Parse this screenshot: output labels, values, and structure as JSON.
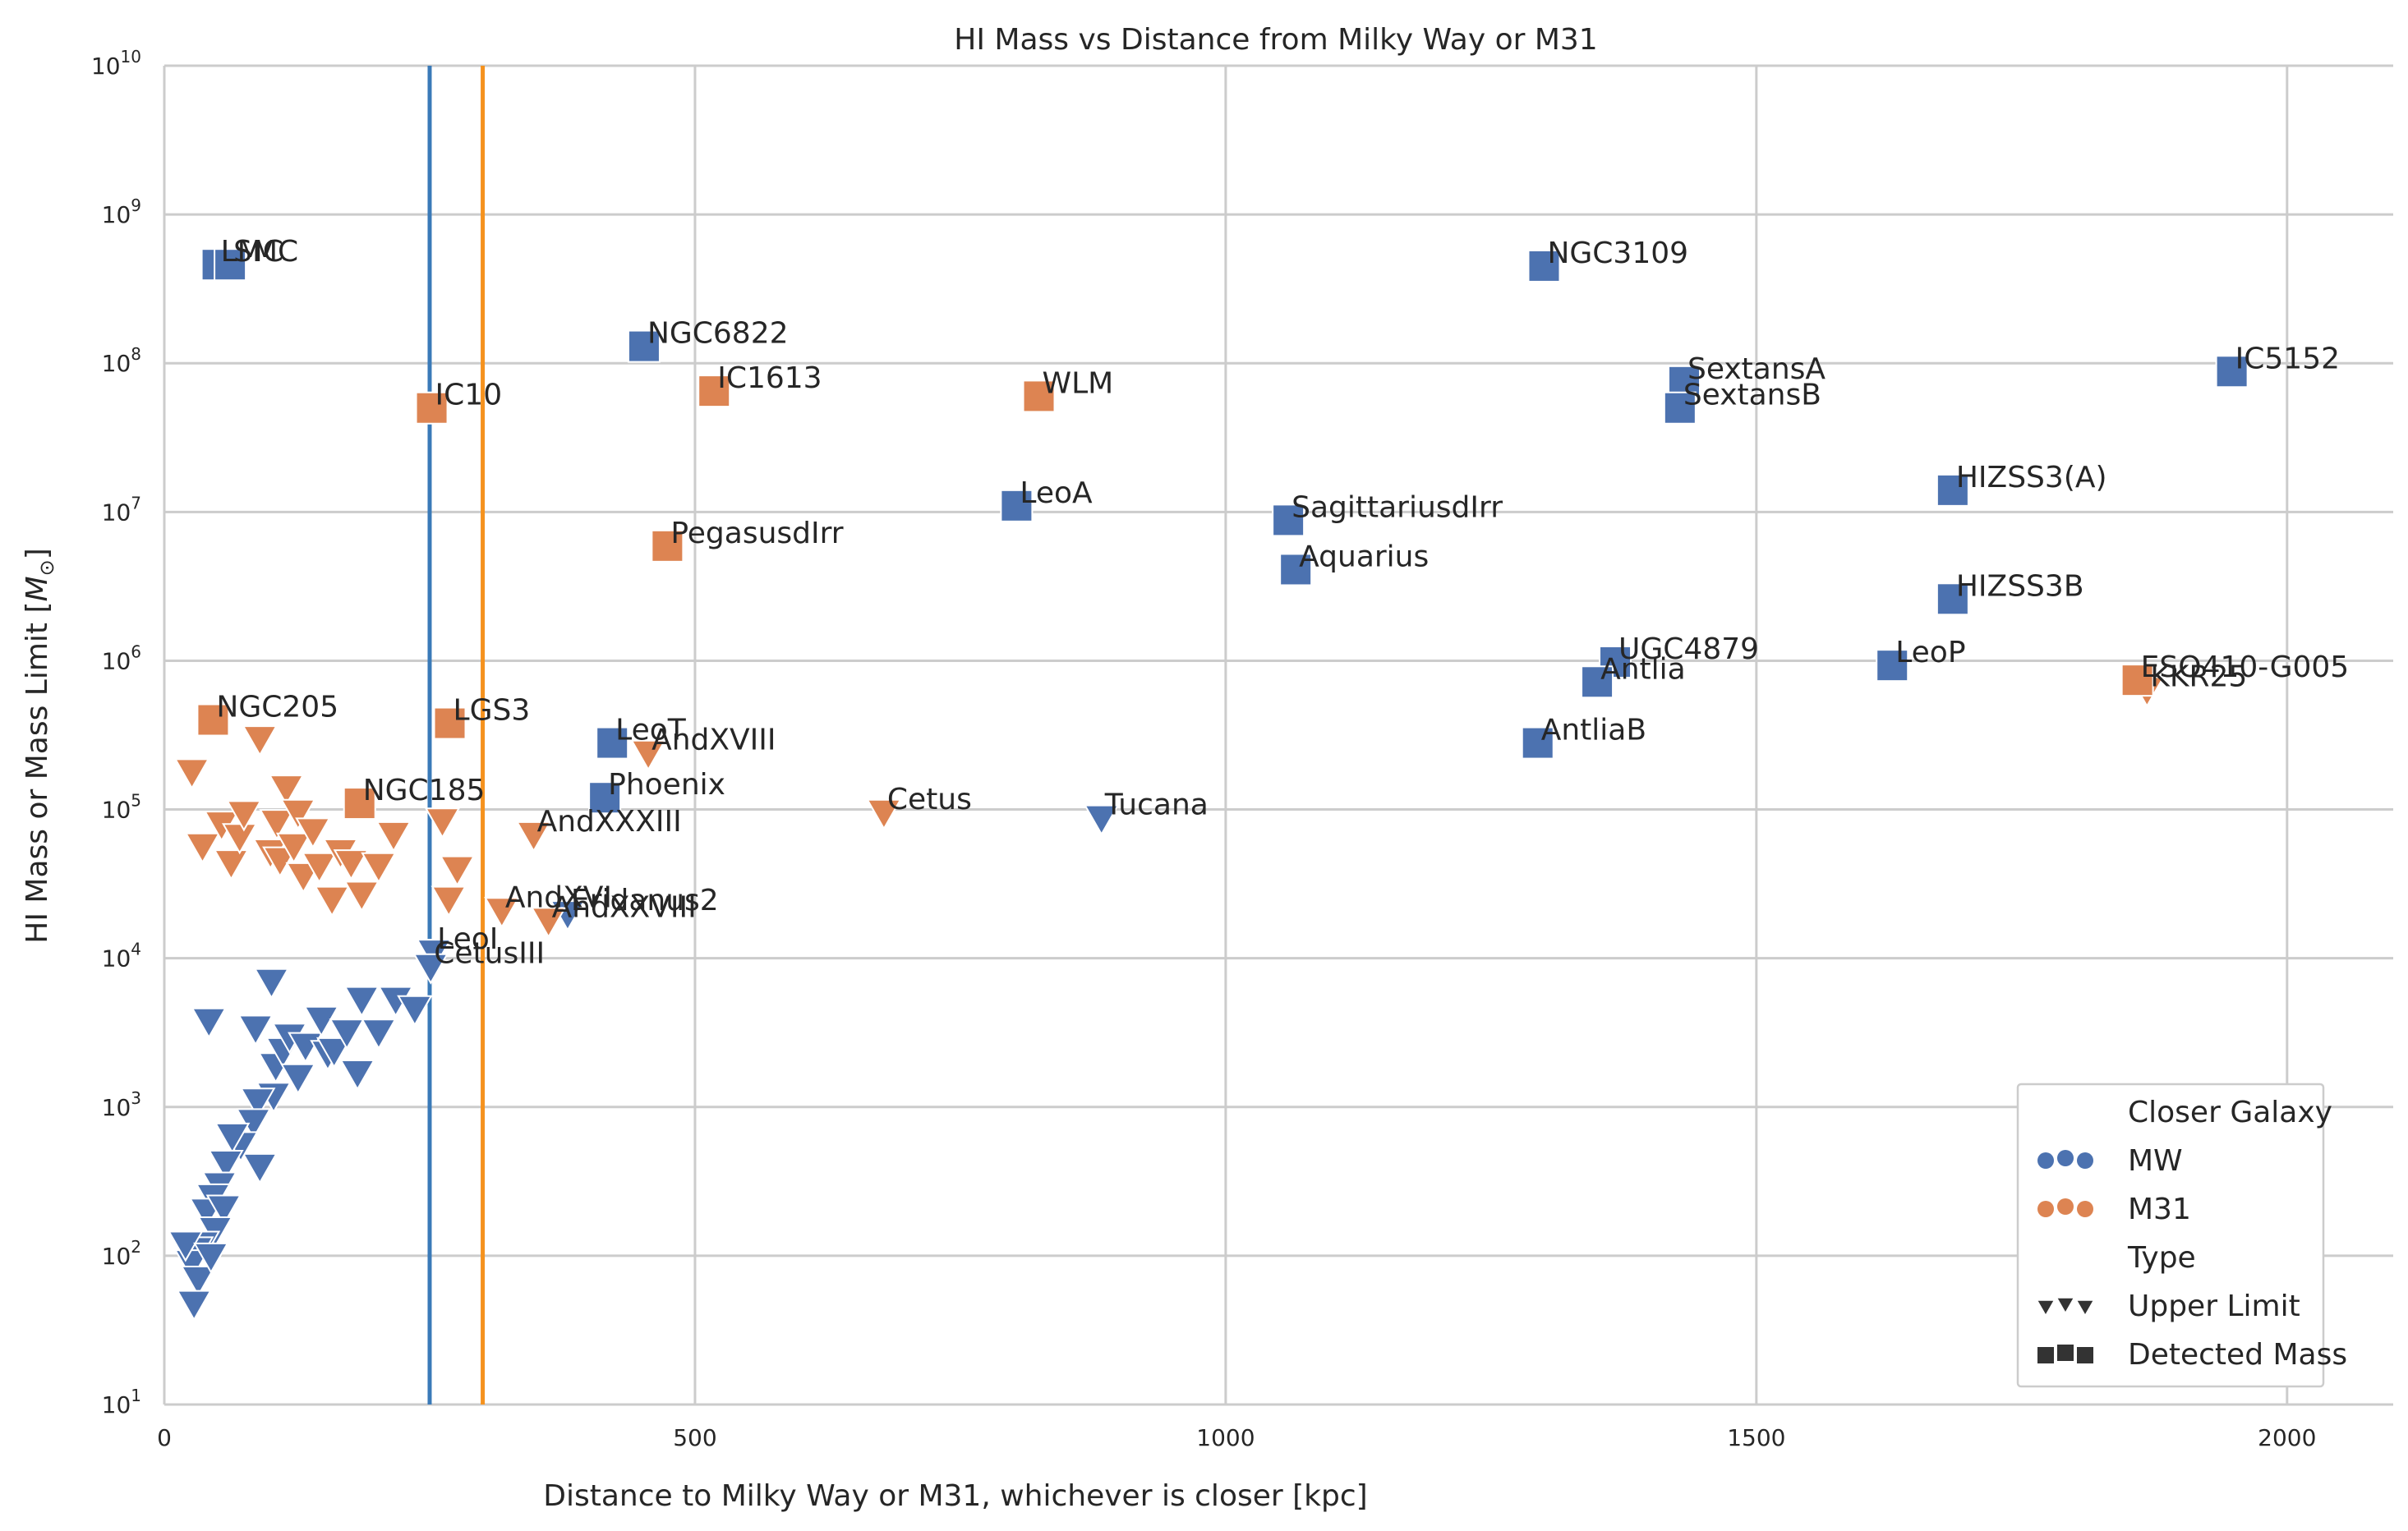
{
  "chart_data": {
    "type": "scatter",
    "title": "HI Mass vs Distance from Milky Way or M31",
    "xlabel": "Distance to Milky Way or M31, whichever is closer [kpc]",
    "ylabel": "HI Mass or Mass Limit [M⊙]",
    "xlim": [
      0,
      2100
    ],
    "ylim": [
      10,
      10000000000
    ],
    "yscale": "log",
    "grid": true,
    "x_ticks": [
      0,
      500,
      1000,
      1500,
      2000
    ],
    "x_tick_labels": [
      "0",
      "500",
      "1000",
      "1500",
      "2000"
    ],
    "y_ticks": [
      10,
      100,
      1000,
      10000,
      100000,
      1000000,
      10000000,
      100000000,
      1000000000,
      10000000000
    ],
    "y_tick_labels": [
      {
        "base": "10",
        "exp": "1"
      },
      {
        "base": "10",
        "exp": "2"
      },
      {
        "base": "10",
        "exp": "3"
      },
      {
        "base": "10",
        "exp": "4"
      },
      {
        "base": "10",
        "exp": "5"
      },
      {
        "base": "10",
        "exp": "6"
      },
      {
        "base": "10",
        "exp": "7"
      },
      {
        "base": "10",
        "exp": "8"
      },
      {
        "base": "10",
        "exp": "9"
      },
      {
        "base": "10",
        "exp": "10"
      }
    ],
    "colors": {
      "MW": "#4c72b0",
      "M31": "#dd8452"
    },
    "vlines": [
      {
        "x": 250,
        "color": "#3a7ab8"
      },
      {
        "x": 300,
        "color": "#f5921e"
      }
    ],
    "legend": {
      "placement": "lower-right",
      "title_hue": "Closer Galaxy",
      "hue_items": [
        {
          "label": "MW",
          "key": "MW"
        },
        {
          "label": "M31",
          "key": "M31"
        }
      ],
      "title_style": "Type",
      "style_items": [
        {
          "label": "Upper Limit",
          "marker": "triangle"
        },
        {
          "label": "Detected Mass",
          "marker": "square"
        }
      ]
    },
    "detected": [
      {
        "name": "LMC",
        "x": 50,
        "y": 460000000,
        "group": "MW"
      },
      {
        "name": "SMC",
        "x": 62,
        "y": 460000000,
        "group": "MW"
      },
      {
        "name": "NGC6822",
        "x": 452,
        "y": 130000000,
        "group": "MW"
      },
      {
        "name": "IC10",
        "x": 252,
        "y": 50000000,
        "group": "M31"
      },
      {
        "name": "IC1613",
        "x": 518,
        "y": 65000000,
        "group": "M31"
      },
      {
        "name": "WLM",
        "x": 824,
        "y": 60000000,
        "group": "M31"
      },
      {
        "name": "NGC3109",
        "x": 1300,
        "y": 450000000,
        "group": "MW"
      },
      {
        "name": "SextansA",
        "x": 1432,
        "y": 75000000,
        "group": "MW"
      },
      {
        "name": "SextansB",
        "x": 1428,
        "y": 50000000,
        "group": "MW"
      },
      {
        "name": "IC5152",
        "x": 1948,
        "y": 88000000,
        "group": "MW"
      },
      {
        "name": "LeoA",
        "x": 803,
        "y": 11000000,
        "group": "MW"
      },
      {
        "name": "SagittariusdIrr",
        "x": 1059,
        "y": 8800000,
        "group": "MW"
      },
      {
        "name": "Aquarius",
        "x": 1066,
        "y": 4100000,
        "group": "MW"
      },
      {
        "name": "PegasusdIrr",
        "x": 474,
        "y": 5900000,
        "group": "M31"
      },
      {
        "name": "HIZSS3(A)",
        "x": 1685,
        "y": 14000000,
        "group": "MW"
      },
      {
        "name": "HIZSS3B",
        "x": 1685,
        "y": 2600000,
        "group": "MW"
      },
      {
        "name": "UGC4879",
        "x": 1367,
        "y": 980000,
        "group": "MW"
      },
      {
        "name": "Antlia",
        "x": 1350,
        "y": 720000,
        "group": "MW"
      },
      {
        "name": "LeoP",
        "x": 1628,
        "y": 930000,
        "group": "MW"
      },
      {
        "name": "ESO410-G005",
        "x": 1859,
        "y": 740000,
        "group": "M31"
      },
      {
        "name": "AntliaB",
        "x": 1294,
        "y": 280000,
        "group": "MW"
      },
      {
        "name": "NGC205",
        "x": 46,
        "y": 400000,
        "group": "M31"
      },
      {
        "name": "LGS3",
        "x": 269,
        "y": 380000,
        "group": "M31"
      },
      {
        "name": "LeoT",
        "x": 422,
        "y": 280000,
        "group": "MW"
      },
      {
        "name": "NGC185",
        "x": 184,
        "y": 110000,
        "group": "M31"
      },
      {
        "name": "Phoenix",
        "x": 415,
        "y": 120000,
        "group": "MW"
      }
    ],
    "upper_limits": [
      {
        "name": "KKR25",
        "x": 1868,
        "y": 640000,
        "group": "M31"
      },
      {
        "name": "AndXVIII",
        "x": 456,
        "y": 240000,
        "group": "M31"
      },
      {
        "name": "Cetus",
        "x": 678,
        "y": 96000,
        "group": "M31"
      },
      {
        "name": "Tucana",
        "x": 883,
        "y": 88000,
        "group": "MW"
      },
      {
        "name": "AndXXXIII",
        "x": 348,
        "y": 68000,
        "group": "M31"
      },
      {
        "name": "AndXVI",
        "x": 318,
        "y": 21000,
        "group": "M31"
      },
      {
        "name": "Eridanus2",
        "x": 380,
        "y": 20000,
        "group": "MW"
      },
      {
        "name": "AndXXVIII",
        "x": 362,
        "y": 18000,
        "group": "M31"
      },
      {
        "name": "LeoI",
        "x": 254,
        "y": 11000,
        "group": "MW"
      },
      {
        "name": "CetusIII",
        "x": 251,
        "y": 8800,
        "group": "MW"
      },
      {
        "name": "",
        "x": 26,
        "y": 180000,
        "group": "M31"
      },
      {
        "name": "",
        "x": 90,
        "y": 300000,
        "group": "M31"
      },
      {
        "name": "",
        "x": 115,
        "y": 140000,
        "group": "M31"
      },
      {
        "name": "",
        "x": 36,
        "y": 57000,
        "group": "M31"
      },
      {
        "name": "",
        "x": 54,
        "y": 80000,
        "group": "M31"
      },
      {
        "name": "",
        "x": 63,
        "y": 44000,
        "group": "M31"
      },
      {
        "name": "",
        "x": 71,
        "y": 66000,
        "group": "M31"
      },
      {
        "name": "",
        "x": 75,
        "y": 94000,
        "group": "M31"
      },
      {
        "name": "",
        "x": 100,
        "y": 52000,
        "group": "M31"
      },
      {
        "name": "",
        "x": 106,
        "y": 82000,
        "group": "M31"
      },
      {
        "name": "",
        "x": 109,
        "y": 46000,
        "group": "M31"
      },
      {
        "name": "",
        "x": 122,
        "y": 57000,
        "group": "M31"
      },
      {
        "name": "",
        "x": 126,
        "y": 96000,
        "group": "M31"
      },
      {
        "name": "",
        "x": 131,
        "y": 36000,
        "group": "M31"
      },
      {
        "name": "",
        "x": 140,
        "y": 72000,
        "group": "M31"
      },
      {
        "name": "",
        "x": 146,
        "y": 42000,
        "group": "M31"
      },
      {
        "name": "",
        "x": 158,
        "y": 25000,
        "group": "M31"
      },
      {
        "name": "",
        "x": 166,
        "y": 52000,
        "group": "M31"
      },
      {
        "name": "",
        "x": 176,
        "y": 44000,
        "group": "M31"
      },
      {
        "name": "",
        "x": 186,
        "y": 27000,
        "group": "M31"
      },
      {
        "name": "",
        "x": 202,
        "y": 42000,
        "group": "M31"
      },
      {
        "name": "",
        "x": 216,
        "y": 68000,
        "group": "M31"
      },
      {
        "name": "",
        "x": 262,
        "y": 84000,
        "group": "M31"
      },
      {
        "name": "",
        "x": 276,
        "y": 40000,
        "group": "M31"
      },
      {
        "name": "",
        "x": 268,
        "y": 25000,
        "group": "M31"
      },
      {
        "name": "",
        "x": 42,
        "y": 3800,
        "group": "MW"
      },
      {
        "name": "",
        "x": 101,
        "y": 7000,
        "group": "MW"
      },
      {
        "name": "",
        "x": 86,
        "y": 3400,
        "group": "MW"
      },
      {
        "name": "",
        "x": 105,
        "y": 1900,
        "group": "MW"
      },
      {
        "name": "",
        "x": 112,
        "y": 2400,
        "group": "MW"
      },
      {
        "name": "",
        "x": 118,
        "y": 3000,
        "group": "MW"
      },
      {
        "name": "",
        "x": 126,
        "y": 1600,
        "group": "MW"
      },
      {
        "name": "",
        "x": 133,
        "y": 2600,
        "group": "MW"
      },
      {
        "name": "",
        "x": 148,
        "y": 3900,
        "group": "MW"
      },
      {
        "name": "",
        "x": 154,
        "y": 2300,
        "group": "MW"
      },
      {
        "name": "",
        "x": 160,
        "y": 2400,
        "group": "MW"
      },
      {
        "name": "",
        "x": 172,
        "y": 3200,
        "group": "MW"
      },
      {
        "name": "",
        "x": 182,
        "y": 1700,
        "group": "MW"
      },
      {
        "name": "",
        "x": 186,
        "y": 5300,
        "group": "MW"
      },
      {
        "name": "",
        "x": 202,
        "y": 3200,
        "group": "MW"
      },
      {
        "name": "",
        "x": 218,
        "y": 5300,
        "group": "MW"
      },
      {
        "name": "",
        "x": 236,
        "y": 4600,
        "group": "MW"
      },
      {
        "name": "",
        "x": 103,
        "y": 1200,
        "group": "MW"
      },
      {
        "name": "",
        "x": 88,
        "y": 1100,
        "group": "MW"
      },
      {
        "name": "",
        "x": 84,
        "y": 800,
        "group": "MW"
      },
      {
        "name": "",
        "x": 90,
        "y": 400,
        "group": "MW"
      },
      {
        "name": "",
        "x": 72,
        "y": 560,
        "group": "MW"
      },
      {
        "name": "",
        "x": 64,
        "y": 640,
        "group": "MW"
      },
      {
        "name": "",
        "x": 58,
        "y": 420,
        "group": "MW"
      },
      {
        "name": "",
        "x": 52,
        "y": 300,
        "group": "MW"
      },
      {
        "name": "",
        "x": 46,
        "y": 250,
        "group": "MW"
      },
      {
        "name": "",
        "x": 40,
        "y": 200,
        "group": "MW"
      },
      {
        "name": "",
        "x": 56,
        "y": 210,
        "group": "MW"
      },
      {
        "name": "",
        "x": 48,
        "y": 150,
        "group": "MW"
      },
      {
        "name": "",
        "x": 36,
        "y": 120,
        "group": "MW"
      },
      {
        "name": "",
        "x": 30,
        "y": 110,
        "group": "MW"
      },
      {
        "name": "",
        "x": 26,
        "y": 90,
        "group": "MW"
      },
      {
        "name": "",
        "x": 32,
        "y": 70,
        "group": "MW"
      },
      {
        "name": "",
        "x": 28,
        "y": 48,
        "group": "MW"
      },
      {
        "name": "",
        "x": 20,
        "y": 120,
        "group": "MW"
      },
      {
        "name": "",
        "x": 44,
        "y": 100,
        "group": "MW"
      }
    ]
  }
}
